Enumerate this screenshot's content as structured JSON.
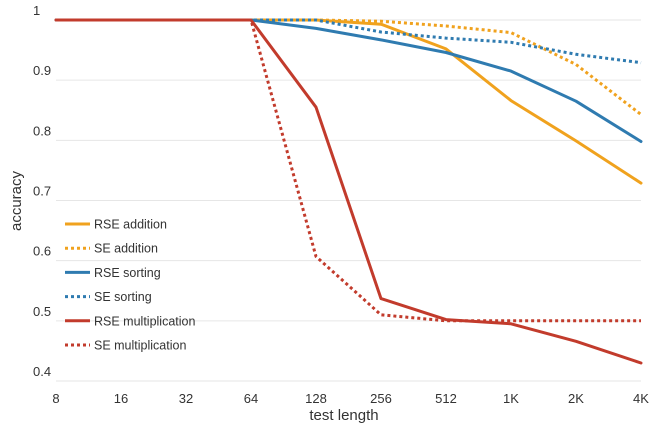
{
  "chart_data": {
    "type": "line",
    "title": "",
    "xlabel": "test length",
    "ylabel": "accuracy",
    "x_scale": "log2",
    "categories": [
      "8",
      "16",
      "32",
      "64",
      "128",
      "256",
      "512",
      "1K",
      "2K",
      "4K"
    ],
    "yticks": [
      "0.4",
      "0.5",
      "0.6",
      "0.7",
      "0.8",
      "0.9",
      "1"
    ],
    "ylim": [
      0.4,
      1.0
    ],
    "grid": "horizontal",
    "legend_position": "lower-left",
    "series": [
      {
        "name": "RSE addition",
        "color": "#f0a21e",
        "style": "solid",
        "values": [
          1.0,
          1.0,
          1.0,
          1.0,
          1.0,
          0.993,
          0.952,
          0.866,
          0.799,
          0.729
        ]
      },
      {
        "name": "SE addition",
        "color": "#f0a21e",
        "style": "dotted",
        "values": [
          1.0,
          1.0,
          1.0,
          1.0,
          1.0,
          0.998,
          0.99,
          0.979,
          0.926,
          0.843
        ]
      },
      {
        "name": "RSE sorting",
        "color": "#2f7bb0",
        "style": "solid",
        "values": [
          1.0,
          1.0,
          1.0,
          1.0,
          0.986,
          0.967,
          0.946,
          0.915,
          0.865,
          0.798
        ]
      },
      {
        "name": "SE sorting",
        "color": "#2f7bb0",
        "style": "dotted",
        "values": [
          1.0,
          1.0,
          1.0,
          1.0,
          1.0,
          0.98,
          0.97,
          0.963,
          0.943,
          0.929
        ]
      },
      {
        "name": "RSE multiplication",
        "color": "#c23b2c",
        "style": "solid",
        "values": [
          1.0,
          1.0,
          1.0,
          1.0,
          0.855,
          0.537,
          0.502,
          0.495,
          0.466,
          0.43
        ]
      },
      {
        "name": "SE multiplication",
        "color": "#c23b2c",
        "style": "dotted",
        "values": [
          1.0,
          1.0,
          1.0,
          1.0,
          0.607,
          0.51,
          0.5,
          0.5,
          0.5,
          0.5
        ]
      }
    ]
  }
}
